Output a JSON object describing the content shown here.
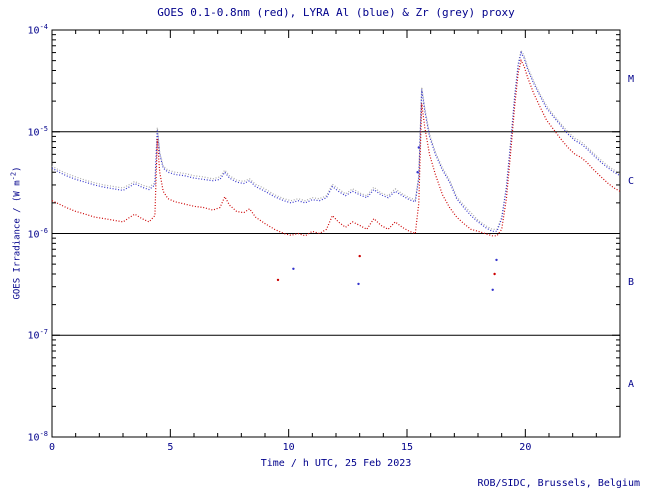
{
  "footer": {
    "credit": "ROB/SIDC, Brussels, Belgium"
  },
  "colors": {
    "text": "#00008b",
    "frame": "#000000",
    "goes_red": "#cc0000",
    "lyra_al_blue": "#3333cc",
    "lyra_zr_grey": "#aaaaaa"
  },
  "axes": {
    "ylabel_pre": "GOES Irradiance / (W m",
    "ylabel_exp": "-2",
    "ylabel_post": ")",
    "x_major_ticks": [
      0,
      5,
      10,
      15,
      20
    ],
    "y_tick_exponents": [
      -8,
      -7,
      -6,
      -5,
      -4
    ]
  },
  "flare_classes": {
    "boundary_exponents": [
      -7,
      -6,
      -5
    ],
    "labels": [
      {
        "label": "A",
        "exp": -7.5
      },
      {
        "label": "B",
        "exp": -6.5
      },
      {
        "label": "C",
        "exp": -5.5
      },
      {
        "label": "M",
        "exp": -4.5
      }
    ]
  },
  "chart_data": {
    "type": "line",
    "title": "GOES 0.1-0.8nm (red), LYRA Al (blue) & Zr (grey) proxy",
    "xlabel": "Time / h UTC, 25 Feb 2023",
    "ylabel": "GOES Irradiance / (W m-2)",
    "xlim": [
      0,
      24
    ],
    "ylim": [
      1e-08,
      0.0001
    ],
    "y_scale": "log",
    "grid": false,
    "legend": "in title",
    "x_hours": [
      0,
      0.3,
      0.6,
      1.0,
      1.4,
      1.8,
      2.2,
      2.6,
      3.0,
      3.3,
      3.5,
      3.8,
      4.1,
      4.35,
      4.45,
      4.55,
      4.7,
      4.9,
      5.2,
      5.6,
      6.0,
      6.4,
      6.8,
      7.1,
      7.3,
      7.5,
      7.8,
      8.1,
      8.35,
      8.6,
      9.0,
      9.4,
      9.8,
      10.1,
      10.4,
      10.7,
      11.0,
      11.3,
      11.6,
      11.85,
      12.1,
      12.4,
      12.7,
      13.0,
      13.3,
      13.6,
      13.9,
      14.2,
      14.5,
      14.8,
      15.1,
      15.35,
      15.5,
      15.62,
      15.75,
      15.95,
      16.2,
      16.5,
      16.8,
      17.1,
      17.4,
      17.7,
      18.0,
      18.3,
      18.6,
      18.8,
      19.0,
      19.2,
      19.4,
      19.55,
      19.7,
      19.82,
      19.95,
      20.1,
      20.35,
      20.6,
      20.9,
      21.2,
      21.5,
      21.8,
      22.1,
      22.35,
      22.6,
      22.9,
      23.2,
      23.5,
      23.75,
      24.0
    ],
    "series": [
      {
        "key": "zr-grey",
        "name": "LYRA Zr proxy",
        "color": "#aaaaaa",
        "values": [
          4.6e-06,
          4.2e-06,
          3.9e-06,
          3.6e-06,
          3.35e-06,
          3.15e-06,
          3e-06,
          2.9e-06,
          2.8e-06,
          3.05e-06,
          3.25e-06,
          3e-06,
          2.85e-06,
          3.15e-06,
          1.1e-05,
          6.3e-06,
          4.6e-06,
          4.2e-06,
          4e-06,
          3.9e-06,
          3.7e-06,
          3.6e-06,
          3.45e-06,
          3.6e-06,
          4.2e-06,
          3.7e-06,
          3.35e-06,
          3.25e-06,
          3.45e-06,
          3.05e-06,
          2.75e-06,
          2.4e-06,
          2.2e-06,
          2.1e-06,
          2.2e-06,
          2.1e-06,
          2.25e-06,
          2.2e-06,
          2.35e-06,
          3.05e-06,
          2.75e-06,
          2.45e-06,
          2.75e-06,
          2.5e-06,
          2.35e-06,
          2.85e-06,
          2.5e-06,
          2.35e-06,
          2.75e-06,
          2.45e-06,
          2.25e-06,
          2.15e-06,
          3.7e-06,
          2.75e-05,
          1.7e-05,
          9.5e-06,
          6.3e-06,
          4.4e-06,
          3.35e-06,
          2.3e-06,
          1.9e-06,
          1.6e-06,
          1.35e-06,
          1.2e-06,
          1.1e-06,
          1.1e-06,
          1.45e-06,
          2.9e-06,
          9e-06,
          2.3e-05,
          4.7e-05,
          6.3e-05,
          5.6e-05,
          4.3e-05,
          3.15e-05,
          2.4e-05,
          1.8e-05,
          1.45e-05,
          1.2e-05,
          1e-05,
          8.6e-06,
          8e-06,
          7.1e-06,
          6.1e-06,
          5.25e-06,
          4.6e-06,
          4.2e-06,
          3.9e-06
        ]
      },
      {
        "key": "al-blue",
        "name": "LYRA Al proxy",
        "color": "#3333cc",
        "values": [
          4.4e-06,
          4e-06,
          3.7e-06,
          3.4e-06,
          3.2e-06,
          3e-06,
          2.85e-06,
          2.75e-06,
          2.65e-06,
          2.9e-06,
          3.1e-06,
          2.85e-06,
          2.7e-06,
          3e-06,
          1.05e-05,
          6e-06,
          4.4e-06,
          4e-06,
          3.8e-06,
          3.7e-06,
          3.5e-06,
          3.4e-06,
          3.3e-06,
          3.4e-06,
          4e-06,
          3.5e-06,
          3.2e-06,
          3.1e-06,
          3.3e-06,
          2.9e-06,
          2.6e-06,
          2.3e-06,
          2.1e-06,
          2e-06,
          2.1e-06,
          2e-06,
          2.15e-06,
          2.1e-06,
          2.25e-06,
          2.9e-06,
          2.6e-06,
          2.35e-06,
          2.6e-06,
          2.4e-06,
          2.25e-06,
          2.7e-06,
          2.4e-06,
          2.25e-06,
          2.6e-06,
          2.35e-06,
          2.15e-06,
          2.05e-06,
          3.5e-06,
          2.6e-05,
          1.6e-05,
          9e-06,
          6e-06,
          4.2e-06,
          3.2e-06,
          2.2e-06,
          1.8e-06,
          1.5e-06,
          1.3e-06,
          1.15e-06,
          1.05e-06,
          1.05e-06,
          1.4e-06,
          2.8e-06,
          8.5e-06,
          2.2e-05,
          4.5e-05,
          6e-05,
          5.3e-05,
          4.1e-05,
          3e-05,
          2.3e-05,
          1.7e-05,
          1.4e-05,
          1.15e-05,
          9.5e-06,
          8.2e-06,
          7.6e-06,
          6.8e-06,
          5.8e-06,
          5e-06,
          4.4e-06,
          4e-06,
          3.7e-06
        ]
      },
      {
        "key": "goes-red",
        "name": "GOES 0.1-0.8nm",
        "color": "#cc0000",
        "values": [
          2.1e-06,
          1.95e-06,
          1.8e-06,
          1.65e-06,
          1.55e-06,
          1.45e-06,
          1.4e-06,
          1.35e-06,
          1.3e-06,
          1.45e-06,
          1.55e-06,
          1.4e-06,
          1.3e-06,
          1.5e-06,
          8.5e-06,
          4e-06,
          2.6e-06,
          2.2e-06,
          2.05e-06,
          1.95e-06,
          1.85e-06,
          1.8e-06,
          1.7e-06,
          1.8e-06,
          2.3e-06,
          1.9e-06,
          1.65e-06,
          1.6e-06,
          1.75e-06,
          1.45e-06,
          1.25e-06,
          1.1e-06,
          1e-06,
          9.6e-07,
          1e-06,
          9.5e-07,
          1.05e-06,
          1e-06,
          1.1e-06,
          1.5e-06,
          1.3e-06,
          1.15e-06,
          1.3e-06,
          1.2e-06,
          1.1e-06,
          1.4e-06,
          1.2e-06,
          1.1e-06,
          1.3e-06,
          1.15e-06,
          1.05e-06,
          1e-06,
          2e-06,
          1.9e-05,
          1.1e-05,
          6e-06,
          3.8e-06,
          2.4e-06,
          1.8e-06,
          1.45e-06,
          1.25e-06,
          1.1e-06,
          1.05e-06,
          1e-06,
          9.5e-07,
          9.5e-07,
          1.1e-06,
          2.2e-06,
          7e-06,
          1.8e-05,
          3.8e-05,
          5e-05,
          4.4e-05,
          3.4e-05,
          2.4e-05,
          1.8e-05,
          1.3e-05,
          1.05e-05,
          8.5e-06,
          7e-06,
          6e-06,
          5.6e-06,
          5e-06,
          4.2e-06,
          3.6e-06,
          3.1e-06,
          2.8e-06,
          2.6e-06
        ]
      }
    ],
    "outlier_points": [
      {
        "x": 9.55,
        "y": 3.5e-07,
        "color": "#cc0000"
      },
      {
        "x": 10.2,
        "y": 4.5e-07,
        "color": "#3333cc"
      },
      {
        "x": 12.95,
        "y": 3.2e-07,
        "color": "#3333cc"
      },
      {
        "x": 13.0,
        "y": 6e-07,
        "color": "#cc0000"
      },
      {
        "x": 15.45,
        "y": 4e-06,
        "color": "#3333cc"
      },
      {
        "x": 15.5,
        "y": 7e-06,
        "color": "#3333cc"
      },
      {
        "x": 18.62,
        "y": 2.8e-07,
        "color": "#3333cc"
      },
      {
        "x": 18.7,
        "y": 4e-07,
        "color": "#cc0000"
      },
      {
        "x": 18.78,
        "y": 5.5e-07,
        "color": "#3333cc"
      }
    ]
  }
}
